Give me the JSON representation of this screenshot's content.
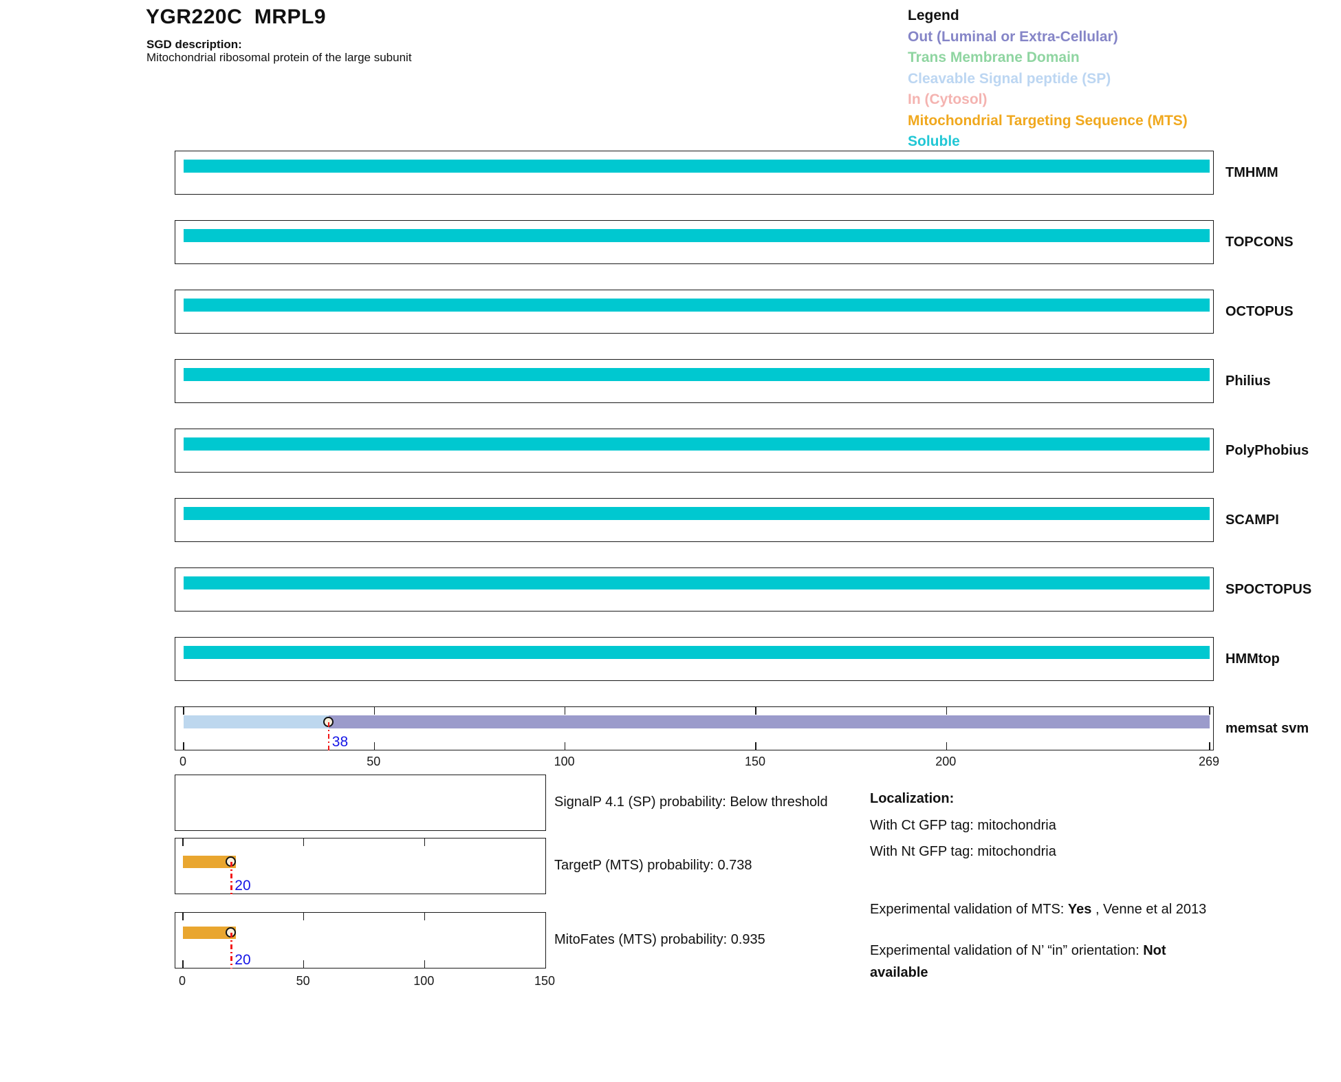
{
  "header": {
    "title": "YGR220C  MRPL9",
    "sgd_label": "SGD description:",
    "sgd_description": "Mitochondrial ribosomal protein of the large subunit"
  },
  "legend": {
    "title": "Legend",
    "items": [
      {
        "label": "Out (Luminal or Extra-Cellular)",
        "color": "#8585C7"
      },
      {
        "label": "Trans Membrane Domain",
        "color": "#8FD5A1"
      },
      {
        "label": "Cleavable Signal peptide (SP)",
        "color": "#BCD6F2"
      },
      {
        "label": "In (Cytosol)",
        "color": "#F4B3B0"
      },
      {
        "label": "Mitochondrial Targeting Sequence (MTS)",
        "color": "#F0A81E"
      },
      {
        "label": "Soluble",
        "color": "#22C7D5"
      }
    ]
  },
  "colors": {
    "segments": {
      "soluble": "#00C8D0",
      "sp": "#BDD7EE",
      "out": "#9B9BCB",
      "mts": "#E9A62F"
    },
    "marker_line": "#F21818",
    "marker_value": "#1414E6",
    "marker_fill": "#FAF0DC",
    "box_border": "#1a1a1a"
  },
  "chart_data": [
    {
      "type": "bar",
      "name": "topology-prediction-tracks",
      "x_range": [
        0,
        269
      ],
      "x_ticks": [
        0,
        50,
        100,
        150,
        200,
        269
      ],
      "tracks": [
        {
          "name": "TMHMM",
          "segments": [
            {
              "from": 0,
              "to": 269,
              "class": "soluble"
            }
          ]
        },
        {
          "name": "TOPCONS",
          "segments": [
            {
              "from": 0,
              "to": 269,
              "class": "soluble"
            }
          ]
        },
        {
          "name": "OCTOPUS",
          "segments": [
            {
              "from": 0,
              "to": 269,
              "class": "soluble"
            }
          ]
        },
        {
          "name": "Philius",
          "segments": [
            {
              "from": 0,
              "to": 269,
              "class": "soluble"
            }
          ]
        },
        {
          "name": "PolyPhobius",
          "segments": [
            {
              "from": 0,
              "to": 269,
              "class": "soluble"
            }
          ]
        },
        {
          "name": "SCAMPI",
          "segments": [
            {
              "from": 0,
              "to": 269,
              "class": "soluble"
            }
          ]
        },
        {
          "name": "SPOCTOPUS",
          "segments": [
            {
              "from": 0,
              "to": 269,
              "class": "soluble"
            }
          ]
        },
        {
          "name": "HMMtop",
          "segments": [
            {
              "from": 0,
              "to": 269,
              "class": "soluble"
            }
          ]
        },
        {
          "name": "memsat svm",
          "segments": [
            {
              "from": 0,
              "to": 38,
              "class": "sp"
            },
            {
              "from": 38,
              "to": 269,
              "class": "out"
            }
          ],
          "marker": {
            "pos": 38,
            "label": "38"
          },
          "axis_ticks": true
        }
      ]
    },
    {
      "type": "bar",
      "name": "nterm-probability-panels",
      "x_range": [
        0,
        150
      ],
      "x_ticks": [
        0,
        50,
        100,
        150
      ],
      "panels": [
        {
          "label": "SignalP 4.1 (SP) probability: Below threshold",
          "bar": null,
          "marker": null,
          "ticks": "none"
        },
        {
          "label": "TargetP (MTS) probability: 0.738",
          "bar": {
            "from": 0,
            "to": 22,
            "class": "mts"
          },
          "marker": {
            "pos": 20,
            "label": "20"
          },
          "ticks": "top"
        },
        {
          "label": "MitoFates (MTS) probability: 0.935",
          "bar": {
            "from": 0,
            "to": 22,
            "class": "mts"
          },
          "marker": {
            "pos": 20,
            "label": "20"
          },
          "ticks": "both"
        }
      ]
    }
  ],
  "localization": {
    "title": "Localization:",
    "lines": [
      "With Ct GFP tag: mitochondria",
      "With Nt GFP tag: mitochondria"
    ]
  },
  "validation": {
    "mts_prefix": "Experimental validation of MTS: ",
    "mts_value": "Yes",
    "mts_suffix": " , Venne et al 2013",
    "orientation_prefix": "Experimental validation of N’ “in” orientation: ",
    "orientation_value": "Not available"
  }
}
